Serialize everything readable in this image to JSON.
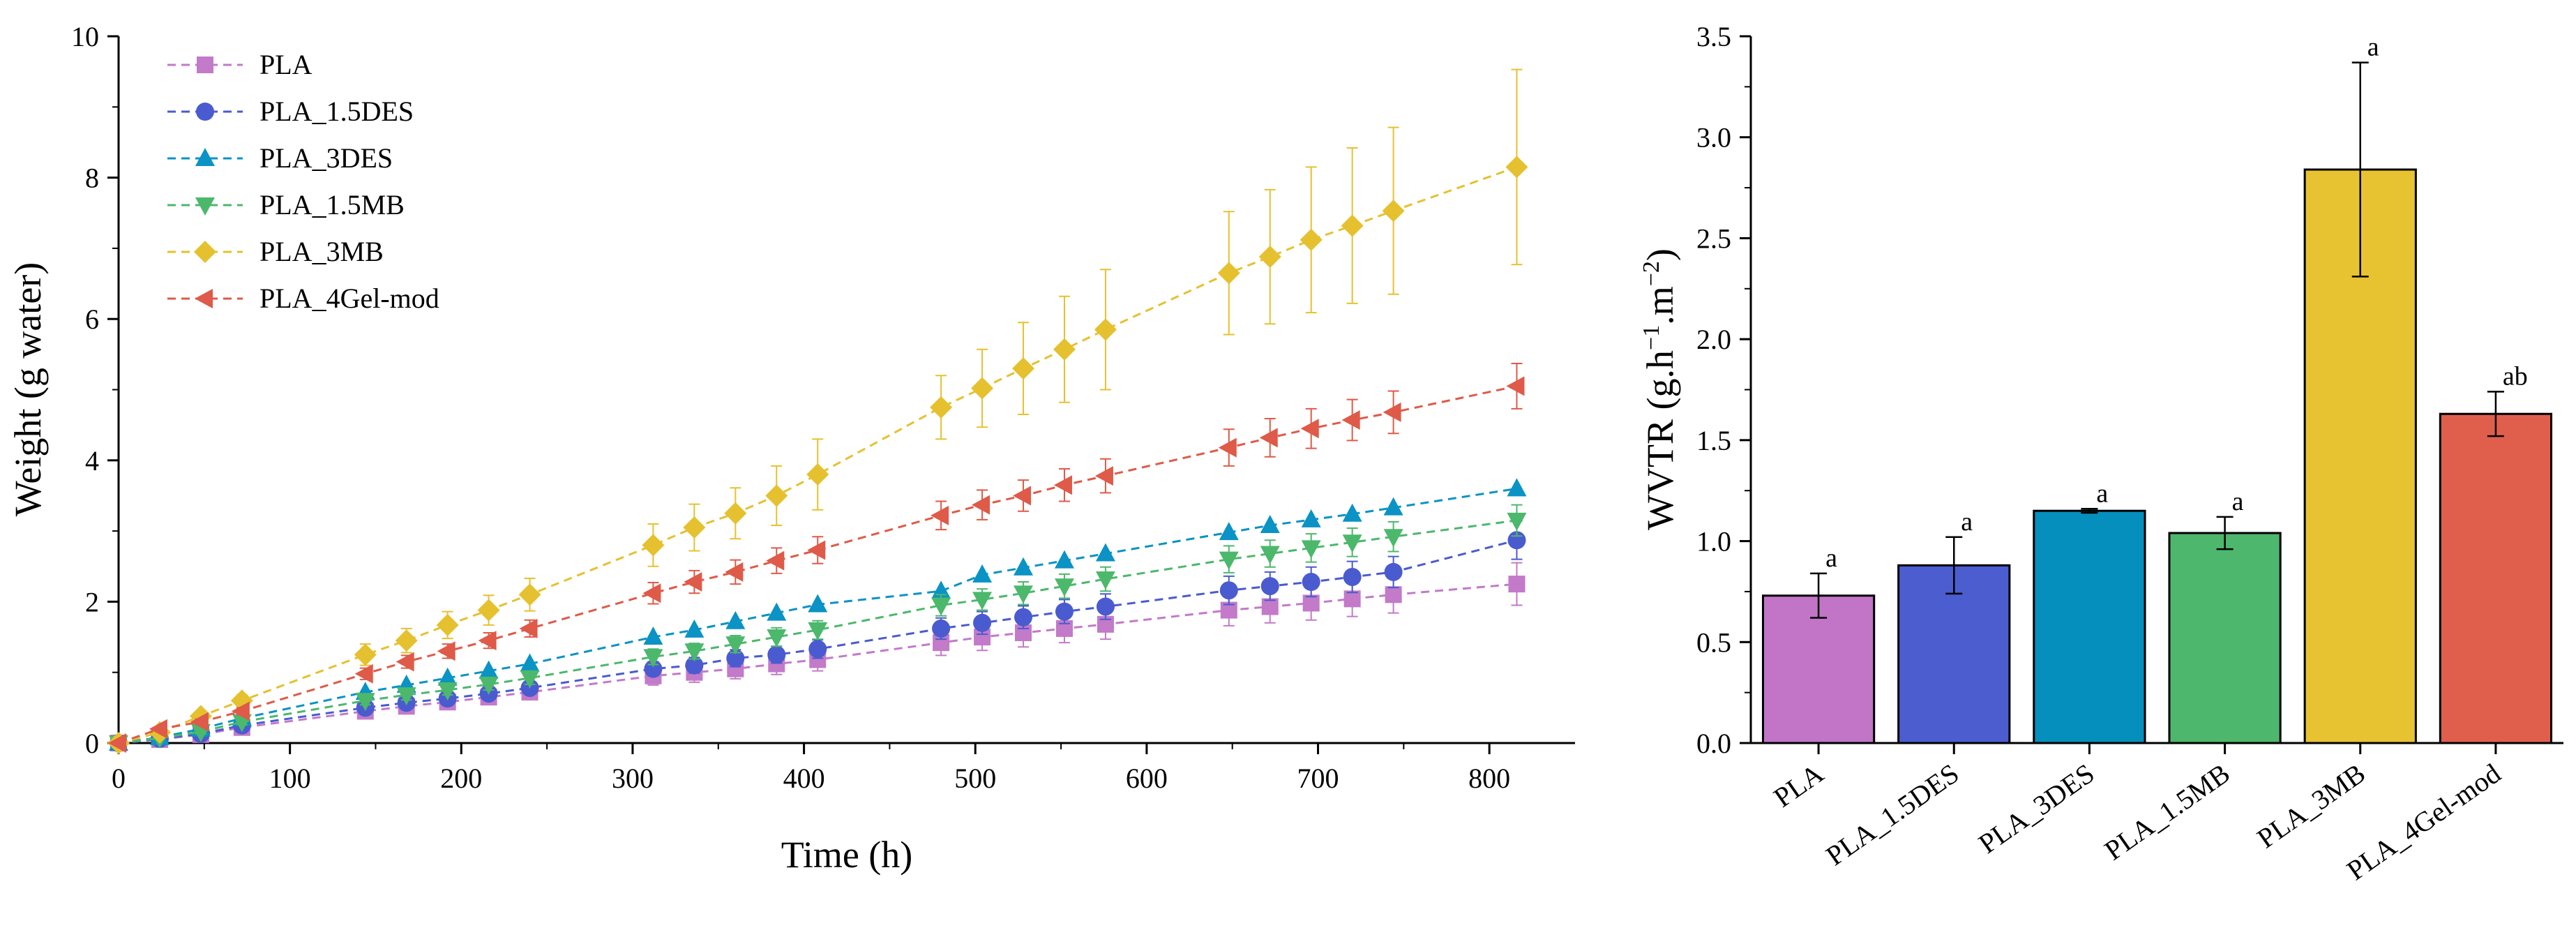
{
  "chart_data": [
    {
      "type": "line",
      "title": "",
      "xlabel": "Time (h)",
      "ylabel": "Weight (g water)",
      "xlim": [
        0,
        850
      ],
      "ylim": [
        0,
        10
      ],
      "xticks": [
        "0",
        "100",
        "200",
        "300",
        "400",
        "500",
        "600",
        "700",
        "800"
      ],
      "yticks": [
        "0",
        "2",
        "4",
        "6",
        "8",
        "10"
      ],
      "legend_position": "top-left",
      "x": [
        0,
        24,
        48,
        72,
        144,
        168,
        192,
        216,
        240,
        312,
        336,
        360,
        384,
        408,
        480,
        504,
        528,
        552,
        576,
        648,
        672,
        696,
        720,
        744,
        816
      ],
      "series": [
        {
          "name": "PLA",
          "color": "#c27ac9",
          "marker": "square",
          "values": [
            0,
            0.05,
            0.12,
            0.22,
            0.45,
            0.52,
            0.58,
            0.65,
            0.72,
            0.95,
            1.0,
            1.05,
            1.12,
            1.18,
            1.42,
            1.5,
            1.56,
            1.62,
            1.68,
            1.88,
            1.93,
            1.98,
            2.04,
            2.1,
            2.25
          ],
          "errors": [
            0,
            0.02,
            0.04,
            0.05,
            0.07,
            0.08,
            0.09,
            0.1,
            0.1,
            0.13,
            0.14,
            0.14,
            0.15,
            0.16,
            0.18,
            0.19,
            0.2,
            0.2,
            0.21,
            0.22,
            0.23,
            0.24,
            0.25,
            0.26,
            0.3
          ]
        },
        {
          "name": "PLA_1.5DES",
          "color": "#4a5bd0",
          "marker": "circle",
          "values": [
            0,
            0.06,
            0.13,
            0.25,
            0.5,
            0.57,
            0.63,
            0.7,
            0.78,
            1.05,
            1.1,
            1.2,
            1.25,
            1.33,
            1.62,
            1.7,
            1.78,
            1.86,
            1.93,
            2.16,
            2.22,
            2.28,
            2.35,
            2.42,
            2.87
          ],
          "errors": [
            0,
            0.02,
            0.03,
            0.04,
            0.05,
            0.06,
            0.07,
            0.07,
            0.08,
            0.1,
            0.11,
            0.12,
            0.12,
            0.13,
            0.15,
            0.16,
            0.16,
            0.17,
            0.18,
            0.2,
            0.2,
            0.21,
            0.22,
            0.22,
            0.27
          ]
        },
        {
          "name": "PLA_3DES",
          "color": "#0a93c4",
          "marker": "triangle-up",
          "values": [
            0,
            0.08,
            0.2,
            0.35,
            0.72,
            0.82,
            0.92,
            1.02,
            1.12,
            1.5,
            1.6,
            1.72,
            1.84,
            1.96,
            2.15,
            2.38,
            2.48,
            2.58,
            2.68,
            2.98,
            3.08,
            3.16,
            3.24,
            3.33,
            3.6
          ]
        },
        {
          "name": "PLA_1.5MB",
          "color": "#4cb86b",
          "marker": "triangle-down",
          "values": [
            0,
            0.07,
            0.16,
            0.3,
            0.6,
            0.68,
            0.75,
            0.83,
            0.92,
            1.22,
            1.3,
            1.4,
            1.5,
            1.6,
            1.95,
            2.03,
            2.12,
            2.22,
            2.32,
            2.6,
            2.68,
            2.76,
            2.84,
            2.92,
            3.15
          ],
          "errors": [
            0,
            0.02,
            0.03,
            0.04,
            0.06,
            0.07,
            0.07,
            0.08,
            0.09,
            0.11,
            0.11,
            0.12,
            0.13,
            0.13,
            0.15,
            0.15,
            0.16,
            0.17,
            0.17,
            0.19,
            0.19,
            0.2,
            0.2,
            0.21,
            0.22
          ]
        },
        {
          "name": "PLA_3MB",
          "color": "#e6c12f",
          "marker": "diamond",
          "values": [
            0,
            0.15,
            0.38,
            0.6,
            1.25,
            1.45,
            1.67,
            1.88,
            2.1,
            2.8,
            3.05,
            3.25,
            3.5,
            3.8,
            4.75,
            5.02,
            5.3,
            5.57,
            5.85,
            6.65,
            6.88,
            7.12,
            7.32,
            7.53,
            8.15
          ],
          "errors": [
            0,
            0.03,
            0.06,
            0.08,
            0.15,
            0.17,
            0.19,
            0.21,
            0.23,
            0.3,
            0.33,
            0.36,
            0.42,
            0.5,
            0.45,
            0.55,
            0.65,
            0.75,
            0.85,
            0.87,
            0.95,
            1.03,
            1.1,
            1.18,
            1.38
          ]
        },
        {
          "name": "PLA_4Gel-mod",
          "color": "#df5a48",
          "marker": "triangle-left",
          "values": [
            0,
            0.2,
            0.3,
            0.45,
            0.98,
            1.15,
            1.3,
            1.45,
            1.62,
            2.12,
            2.28,
            2.42,
            2.58,
            2.73,
            3.22,
            3.37,
            3.5,
            3.65,
            3.78,
            4.18,
            4.32,
            4.45,
            4.57,
            4.68,
            5.05
          ],
          "errors": [
            0,
            0.03,
            0.04,
            0.05,
            0.08,
            0.09,
            0.1,
            0.11,
            0.12,
            0.15,
            0.16,
            0.17,
            0.18,
            0.19,
            0.2,
            0.21,
            0.22,
            0.23,
            0.24,
            0.26,
            0.27,
            0.28,
            0.29,
            0.3,
            0.32
          ]
        }
      ]
    },
    {
      "type": "bar",
      "title": "",
      "xlabel": "",
      "ylabel": "WVTR (g.h",
      "ylabel_sup1": "−1",
      "ylabel_mid": ".m",
      "ylabel_sup2": "−2",
      "ylabel_end": ")",
      "ylim": [
        0,
        3.5
      ],
      "yticks": [
        "0.0",
        "0.5",
        "1.0",
        "1.5",
        "2.0",
        "2.5",
        "3.0",
        "3.5"
      ],
      "categories": [
        "PLA",
        "PLA_1.5DES",
        "PLA_3DES",
        "PLA_1.5MB",
        "PLA_3MB",
        "PLA_4Gel-mod"
      ],
      "values": [
        0.73,
        0.88,
        1.15,
        1.04,
        2.84,
        1.63
      ],
      "errors": [
        0.11,
        0.14,
        0.01,
        0.08,
        0.53,
        0.11
      ],
      "significance": [
        "a",
        "a",
        "a",
        "a",
        "a",
        "ab"
      ],
      "colors": [
        "#c274c6",
        "#4b5dcf",
        "#058fbd",
        "#4db76d",
        "#e8c331",
        "#e05f4c"
      ]
    }
  ]
}
